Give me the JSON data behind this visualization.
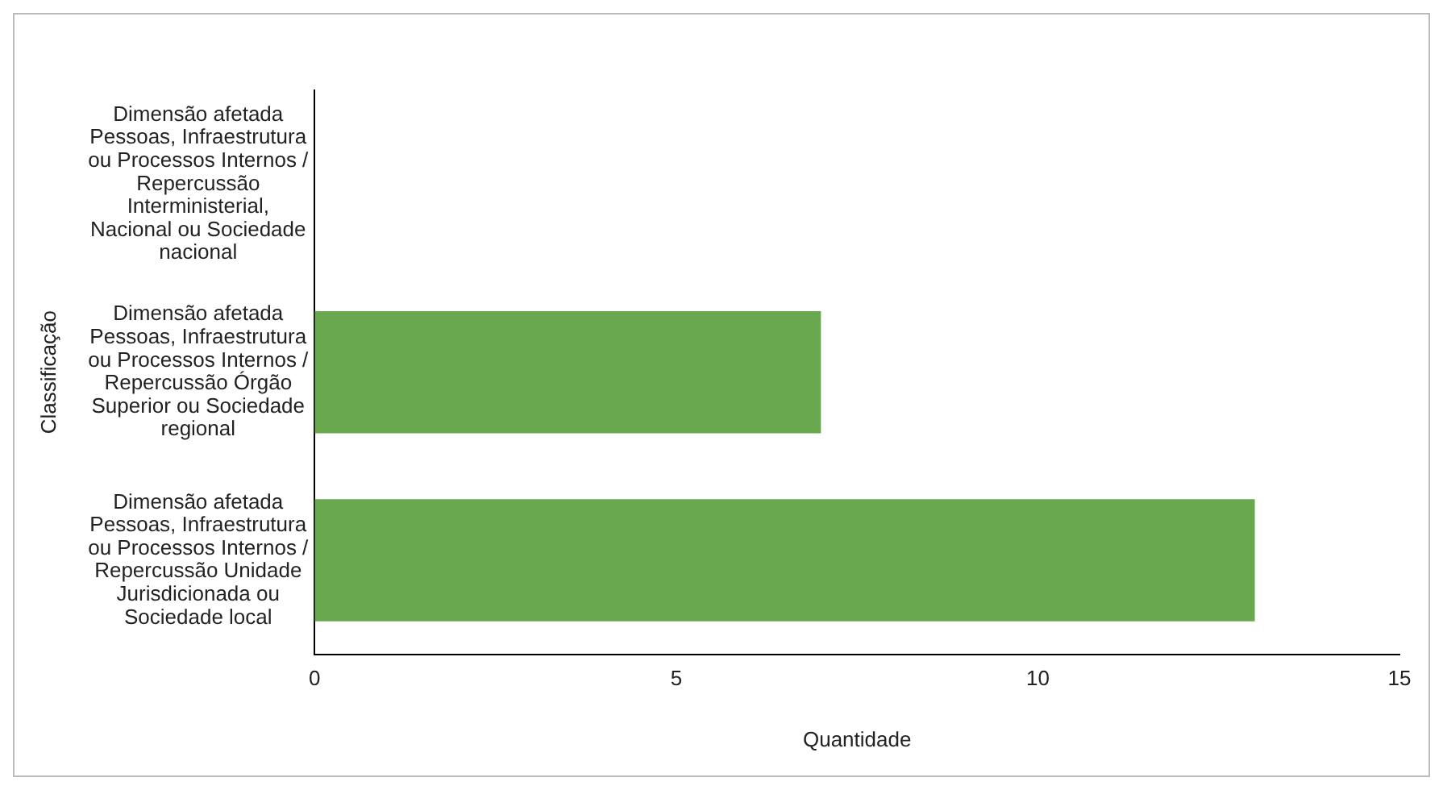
{
  "chart_data": {
    "type": "bar",
    "orientation": "horizontal",
    "xlabel": "Quantidade",
    "ylabel": "Classificação",
    "categories": [
      "Dimensão afetada Pessoas, Infraestrutura ou Processos Internos / Repercussão Interministerial, Nacional ou Sociedade nacional",
      "Dimensão afetada Pessoas, Infraestrutura ou Processos Internos / Repercussão Órgão Superior ou Sociedade regional",
      "Dimensão afetada Pessoas, Infraestrutura ou Processos Internos / Repercussão Unidade Jurisdicionada ou Sociedade local"
    ],
    "values": [
      0,
      7,
      13
    ],
    "color": "#6aa84f",
    "xlim": [
      0,
      15
    ],
    "xticks": [
      0,
      5,
      10,
      15
    ],
    "grid": false,
    "legend": false
  }
}
